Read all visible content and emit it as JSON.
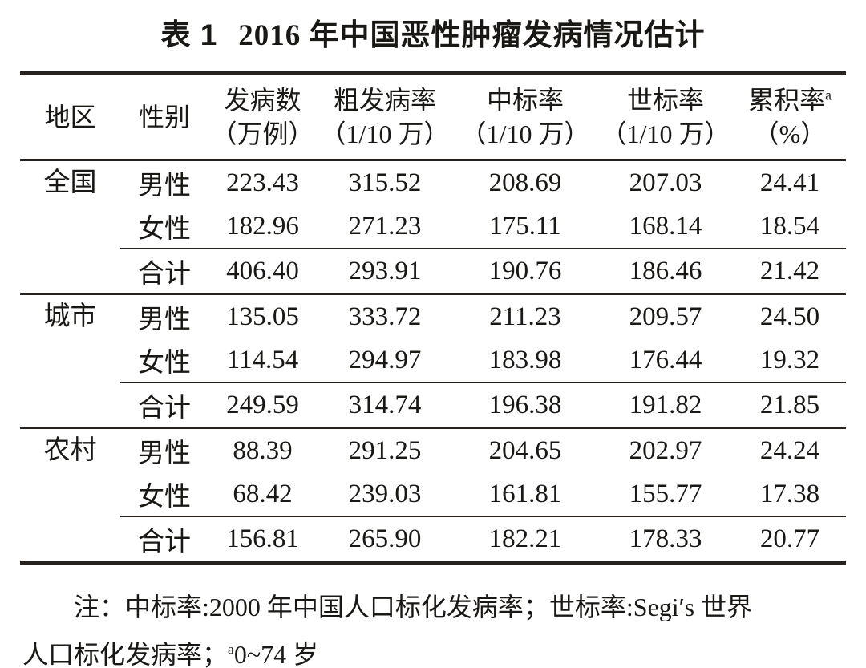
{
  "title": {
    "label": "表 1",
    "text": "2016 年中国恶性肿瘤发病情况估计"
  },
  "table": {
    "headers": [
      {
        "line1": "地区",
        "sup": "",
        "line2": ""
      },
      {
        "line1": "性别",
        "sup": "",
        "line2": ""
      },
      {
        "line1": "发病数",
        "sup": "",
        "line2": "（万例）"
      },
      {
        "line1": "粗发病率",
        "sup": "",
        "line2": "（1/10 万）"
      },
      {
        "line1": "中标率",
        "sup": "",
        "line2": "（1/10 万）"
      },
      {
        "line1": "世标率",
        "sup": "",
        "line2": "（1/10 万）"
      },
      {
        "line1": "累积率",
        "sup": "a",
        "line2": "（%）"
      }
    ],
    "sections": [
      {
        "region": "全国",
        "rows": [
          {
            "sex": "男性",
            "values": [
              "223.43",
              "315.52",
              "208.69",
              "207.03",
              "24.41"
            ]
          },
          {
            "sex": "女性",
            "values": [
              "182.96",
              "271.23",
              "175.11",
              "168.14",
              "18.54"
            ]
          },
          {
            "sex": "合计",
            "values": [
              "406.40",
              "293.91",
              "190.76",
              "186.46",
              "21.42"
            ]
          }
        ]
      },
      {
        "region": "城市",
        "rows": [
          {
            "sex": "男性",
            "values": [
              "135.05",
              "333.72",
              "211.23",
              "209.57",
              "24.50"
            ]
          },
          {
            "sex": "女性",
            "values": [
              "114.54",
              "294.97",
              "183.98",
              "176.44",
              "19.32"
            ]
          },
          {
            "sex": "合计",
            "values": [
              "249.59",
              "314.74",
              "196.38",
              "191.82",
              "21.85"
            ]
          }
        ]
      },
      {
        "region": "农村",
        "rows": [
          {
            "sex": "男性",
            "values": [
              "88.39",
              "291.25",
              "204.65",
              "202.97",
              "24.24"
            ]
          },
          {
            "sex": "女性",
            "values": [
              "68.42",
              "239.03",
              "161.81",
              "155.77",
              "17.38"
            ]
          },
          {
            "sex": "合计",
            "values": [
              "156.81",
              "265.90",
              "182.21",
              "178.33",
              "20.77"
            ]
          }
        ]
      }
    ]
  },
  "footnote": {
    "line1": "注：中标率:2000 年中国人口标化发病率；世标率:Segi′s 世界",
    "line2_pre": "人口标化发病率；",
    "line2_sup": "a",
    "line2_post": "0~74 岁"
  }
}
